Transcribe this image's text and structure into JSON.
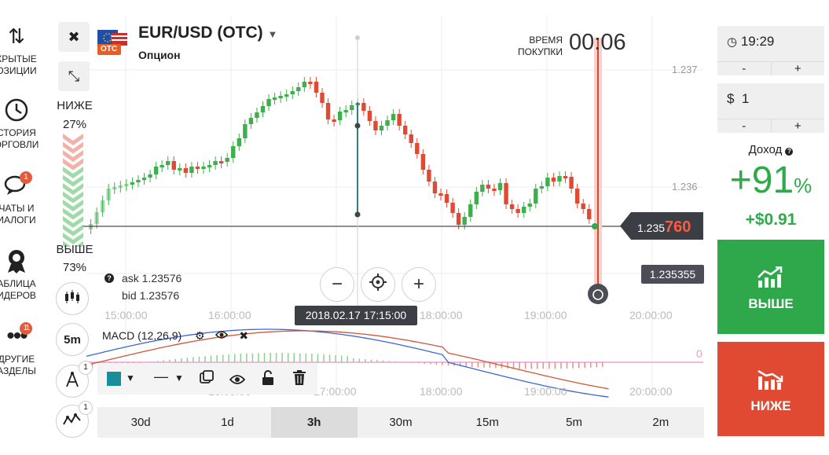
{
  "sidebar": {
    "items": [
      {
        "label1": "КРЫТЫЕ",
        "label2": "ОЗИЦИИ",
        "icon": "arrows-updown-icon"
      },
      {
        "label1": "СТОРИЯ",
        "label2": "ОРГОВЛИ",
        "icon": "history-clock-icon"
      },
      {
        "label1": "ЧАТЫ И",
        "label2": "ИАЛОГИ",
        "icon": "chat-bubbles-icon",
        "badge": "1"
      },
      {
        "label1": "АБЛИЦА",
        "label2": "ИДЕРОВ",
        "icon": "leaderboard-medal-icon"
      },
      {
        "label1": "ДРУГИЕ",
        "label2": "АЗДЕЛЫ",
        "icon": "more-dots-icon",
        "badge": "11"
      }
    ]
  },
  "sentiment": {
    "down_label": "НИЖЕ",
    "down_pct": "27%",
    "up_label": "ВЫШЕ",
    "up_pct": "73%",
    "down_fraction": 0.27,
    "up_fraction": 0.73
  },
  "tools": {
    "indicators_badge": "1",
    "drawing_badge": "1",
    "candle_period": "5m"
  },
  "asset": {
    "name": "EUR/USD (OTC)",
    "type": "Опцион",
    "otc_badge": "OTC"
  },
  "timer": {
    "label1": "ВРЕМЯ",
    "label2": "ПОКУПКИ",
    "value": "00:06"
  },
  "chart": {
    "y_ticks": [
      "1.237",
      "1.236"
    ],
    "x_ticks_main": [
      "15:00:00",
      "16:00:00",
      "18:00:00",
      "19:00:00",
      "20:00:00"
    ],
    "x_ticks_macd": [
      "16:00:00",
      "17:00:00",
      "18:00:00",
      "19:00:00",
      "20:00:00"
    ],
    "current_price_prefix": "1.235",
    "current_price_suffix": "760",
    "strike_price": "1.235355",
    "crosshair_time": "2018.02.17 17:15:00",
    "ask": "ask 1.23576",
    "bid": "bid 1.23576",
    "macd_label": "MACD (12,26,9)",
    "macd_zero": "0",
    "colors": {
      "up": "#3fae4d",
      "down": "#e04a32",
      "macd": "#3a66d8",
      "signal": "#d0553a"
    }
  },
  "timeframes": [
    "30d",
    "1d",
    "3h",
    "30m",
    "15m",
    "5m",
    "2m"
  ],
  "active_timeframe": "3h",
  "right_panel": {
    "time": "19:29",
    "amount_prefix": "$",
    "amount": "1",
    "minus": "-",
    "plus": "+",
    "income_label": "Доход",
    "income_pct": "+91",
    "income_pct_sign": "%",
    "income_amount": "+$0.91",
    "up_button": "ВЫШЕ",
    "down_button": "НИЖЕ"
  }
}
